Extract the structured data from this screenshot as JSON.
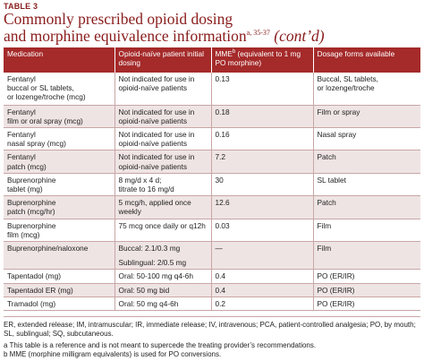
{
  "table_label": "TABLE 3",
  "title": {
    "line1": "Commonly prescribed opioid dosing",
    "line2": "and morphine equivalence information",
    "refs": "a, 35-37",
    "suffix": "(cont’d)"
  },
  "headers": {
    "medication": "Medication",
    "initial": "Opioid-naïve patient initial dosing",
    "mme_prefix": "MME",
    "mme_sup": "b",
    "mme_rest": " (equivalent to 1 mg PO morphine)",
    "forms": "Dosage forms available"
  },
  "rows": [
    {
      "medication": [
        "Fentanyl",
        "buccal or SL tablets,",
        "or lozenge/troche (mcg)"
      ],
      "initial": [
        "Not indicated for use in",
        "opioid-naïve patients"
      ],
      "mme": [
        "0.13"
      ],
      "forms": [
        "Buccal, SL tablets,",
        "or lozenge/troche"
      ]
    },
    {
      "medication": [
        "Fentanyl",
        "film or oral spray (mcg)"
      ],
      "initial": [
        "Not indicated for use in",
        "opioid-naïve patients"
      ],
      "mme": [
        "0.18"
      ],
      "forms": [
        "Film or spray"
      ]
    },
    {
      "medication": [
        "Fentanyl",
        "nasal spray (mcg)"
      ],
      "initial": [
        "Not indicated for use in",
        "opioid-naïve patients"
      ],
      "mme": [
        "0.16"
      ],
      "forms": [
        "Nasal spray"
      ]
    },
    {
      "medication": [
        "Fentanyl",
        "patch (mcg)"
      ],
      "initial": [
        "Not indicated for use in",
        "opioid-naïve patients"
      ],
      "mme": [
        "7.2"
      ],
      "forms": [
        "Patch"
      ]
    },
    {
      "medication": [
        "Buprenorphine",
        "tablet (mg)"
      ],
      "initial": [
        "8 mg/d x 4 d;",
        "titrate to 16 mg/d"
      ],
      "mme": [
        "30"
      ],
      "forms": [
        "SL tablet"
      ]
    },
    {
      "medication": [
        "Buprenorphine",
        "patch (mcg/hr)"
      ],
      "initial": [
        "5 mcg/h, applied once",
        "weekly"
      ],
      "mme": [
        "12.6"
      ],
      "forms": [
        "Patch"
      ]
    },
    {
      "medication": [
        "Buprenorphine",
        "film (mcg)"
      ],
      "initial": [
        "75 mcg once daily or q12h"
      ],
      "mme": [
        "0.03"
      ],
      "forms": [
        "Film"
      ]
    },
    {
      "medication": [
        "Buprenorphine/naloxone"
      ],
      "initial": [
        "Buccal: 2.1/0.3 mg",
        "",
        "Sublingual: 2/0.5 mg"
      ],
      "mme": [
        "—"
      ],
      "forms": [
        "Film"
      ]
    },
    {
      "medication": [
        "Tapentadol (mg)"
      ],
      "initial": [
        "Oral: 50-100 mg q4-6h"
      ],
      "mme": [
        "0.4"
      ],
      "forms": [
        "PO (ER/IR)"
      ]
    },
    {
      "medication": [
        "Tapentadol ER (mg)"
      ],
      "initial": [
        "Oral: 50 mg bid"
      ],
      "mme": [
        "0.4"
      ],
      "forms": [
        "PO (ER/IR)"
      ]
    },
    {
      "medication": [
        "Tramadol (mg)"
      ],
      "initial": [
        "Oral: 50 mg q4-6h"
      ],
      "mme": [
        "0.2"
      ],
      "forms": [
        "PO (ER/IR)"
      ]
    }
  ],
  "footnotes": {
    "abbreviations": "ER, extended release; IM, intramuscular; IR, immediate release; IV, intravenous; PCA, patient-controlled analgesia; PO, by mouth; SL, sublingual; SQ, subcutaneous.",
    "a": "a This table is a reference and is not meant to supercede the treating provider’s recommendations.",
    "b": "b MME (morphine milligram equivalents) is used for PO conversions."
  },
  "colors": {
    "accent": "#a52a2a",
    "title": "#8a1c1c",
    "stripe": "#efe4e4"
  }
}
